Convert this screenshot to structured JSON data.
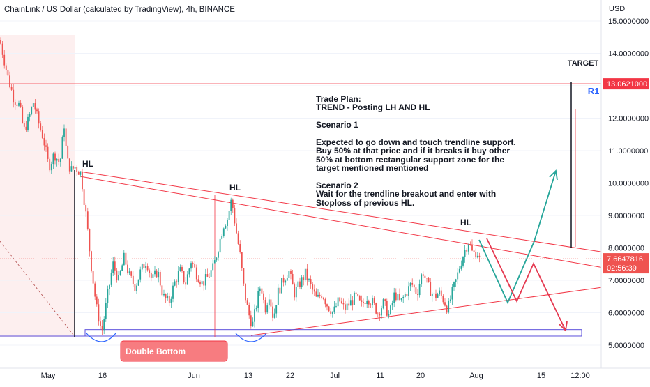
{
  "header": {
    "symbol_title": "ChainLink / US Dollar (calculated by TradingView), 4h, BINANCE",
    "currency": "USD"
  },
  "colors": {
    "up": "#26a69a",
    "down": "#ef5350",
    "resistance": "#f23645",
    "support_box": "#5b4fdb",
    "arrow_up": "#26a69a",
    "arrow_down": "#e53950",
    "badge_bg": "#f23645",
    "double_bottom_bg": "#f77c80"
  },
  "chart_data": {
    "type": "candlestick",
    "timeframe": "4h",
    "exchange": "BINANCE",
    "title": "ChainLink / US Dollar (calculated by TradingView), 4h, BINANCE",
    "y_axis": {
      "unit": "USD",
      "ticks": [
        "15.0000000",
        "14.0000000",
        "13.0000000",
        "12.0000000",
        "11.0000000",
        "10.0000000",
        "9.0000000",
        "8.0000000",
        "7.0000000",
        "6.0000000",
        "5.0000000"
      ],
      "range": [
        4.6,
        15.5
      ]
    },
    "x_axis": {
      "ticks": [
        "May",
        "16",
        "Jun",
        "13",
        "22",
        "Jul",
        "11",
        "20",
        "Aug",
        "15",
        "12:00"
      ]
    },
    "price_path": [
      [
        0,
        14.4
      ],
      [
        5,
        13.9
      ],
      [
        12,
        13.2
      ],
      [
        20,
        12.6
      ],
      [
        28,
        12.4
      ],
      [
        34,
        11.6
      ],
      [
        40,
        11.9
      ],
      [
        48,
        12.5
      ],
      [
        56,
        11.8
      ],
      [
        62,
        11.4
      ],
      [
        70,
        10.5
      ],
      [
        78,
        10.9
      ],
      [
        86,
        10.6
      ],
      [
        92,
        11.8
      ],
      [
        96,
        10.7
      ],
      [
        102,
        10.4
      ],
      [
        108,
        10.5
      ],
      [
        116,
        10.3
      ],
      [
        124,
        8.9
      ],
      [
        130,
        7.6
      ],
      [
        138,
        6.2
      ],
      [
        146,
        5.4
      ],
      [
        154,
        6.5
      ],
      [
        162,
        7.5
      ],
      [
        170,
        7.0
      ],
      [
        178,
        7.7
      ],
      [
        186,
        7.1
      ],
      [
        194,
        6.8
      ],
      [
        202,
        7.3
      ],
      [
        210,
        7.6
      ],
      [
        218,
        7.0
      ],
      [
        226,
        7.3
      ],
      [
        234,
        6.5
      ],
      [
        242,
        6.3
      ],
      [
        250,
        6.9
      ],
      [
        258,
        7.3
      ],
      [
        266,
        6.9
      ],
      [
        274,
        7.6
      ],
      [
        282,
        7.2
      ],
      [
        290,
        6.9
      ],
      [
        298,
        7.1
      ],
      [
        306,
        7.4
      ],
      [
        314,
        8.1
      ],
      [
        320,
        8.7
      ],
      [
        326,
        8.9
      ],
      [
        332,
        9.5
      ],
      [
        338,
        8.6
      ],
      [
        344,
        7.8
      ],
      [
        350,
        6.7
      ],
      [
        356,
        6.0
      ],
      [
        362,
        5.6
      ],
      [
        368,
        6.3
      ],
      [
        374,
        6.9
      ],
      [
        380,
        6.1
      ],
      [
        386,
        6.6
      ],
      [
        392,
        5.8
      ],
      [
        398,
        6.6
      ],
      [
        406,
        7.0
      ],
      [
        414,
        7.3
      ],
      [
        422,
        6.6
      ],
      [
        430,
        6.9
      ],
      [
        438,
        7.2
      ],
      [
        446,
        6.8
      ],
      [
        454,
        6.4
      ],
      [
        462,
        6.6
      ],
      [
        470,
        6.2
      ],
      [
        478,
        6.0
      ],
      [
        486,
        6.4
      ],
      [
        494,
        6.1
      ],
      [
        502,
        6.3
      ],
      [
        510,
        6.5
      ],
      [
        518,
        6.2
      ],
      [
        526,
        6.5
      ],
      [
        534,
        6.3
      ],
      [
        542,
        6.0
      ],
      [
        550,
        6.3
      ],
      [
        558,
        5.9
      ],
      [
        566,
        6.6
      ],
      [
        574,
        6.3
      ],
      [
        582,
        6.6
      ],
      [
        590,
        6.9
      ],
      [
        598,
        6.6
      ],
      [
        606,
        7.3
      ],
      [
        614,
        6.8
      ],
      [
        622,
        6.5
      ],
      [
        630,
        6.6
      ],
      [
        636,
        6.4
      ],
      [
        642,
        6.1
      ],
      [
        648,
        6.6
      ],
      [
        654,
        7.0
      ],
      [
        660,
        7.5
      ],
      [
        666,
        7.9
      ],
      [
        672,
        8.2
      ],
      [
        678,
        7.8
      ],
      [
        684,
        7.9
      ],
      [
        688,
        7.6
      ]
    ],
    "current_price": "7.6647816",
    "countdown": "02:56:39",
    "target_price": "13.0621000",
    "levels": [
      {
        "name": "target-line",
        "price": 13.0621
      },
      {
        "name": "current-price",
        "price": 7.6647816
      }
    ],
    "trendlines": [
      {
        "from": [
          116,
          10.35
        ],
        "to": [
          862,
          7.88
        ]
      },
      {
        "from": [
          116,
          10.2
        ],
        "to": [
          862,
          7.4
        ]
      },
      {
        "from": [
          360,
          5.3
        ],
        "to": [
          862,
          6.78
        ]
      }
    ],
    "support_zone": {
      "x_start": 122,
      "x_end": 834,
      "top": 5.48,
      "bottom": 5.28
    },
    "annotations": {
      "hl_labels": [
        "HL",
        "HL",
        "HL"
      ],
      "target_label": "TARGET",
      "r1_label": "R1",
      "double_bottom_label": "Double Bottom",
      "trade_plan": "Trade Plan:\nTREND - Posting LH AND HL\n\nScenario 1\n\nExpected to go down and touch trendline support.\nBuy 50% at that price and if it breaks it buy other\n50% at bottom rectangular support zone for the\ntarget mentioned mentioned\n\nScenario 2\nWait for the trendline breakout and enter with\nStoploss of previous HL."
    }
  }
}
